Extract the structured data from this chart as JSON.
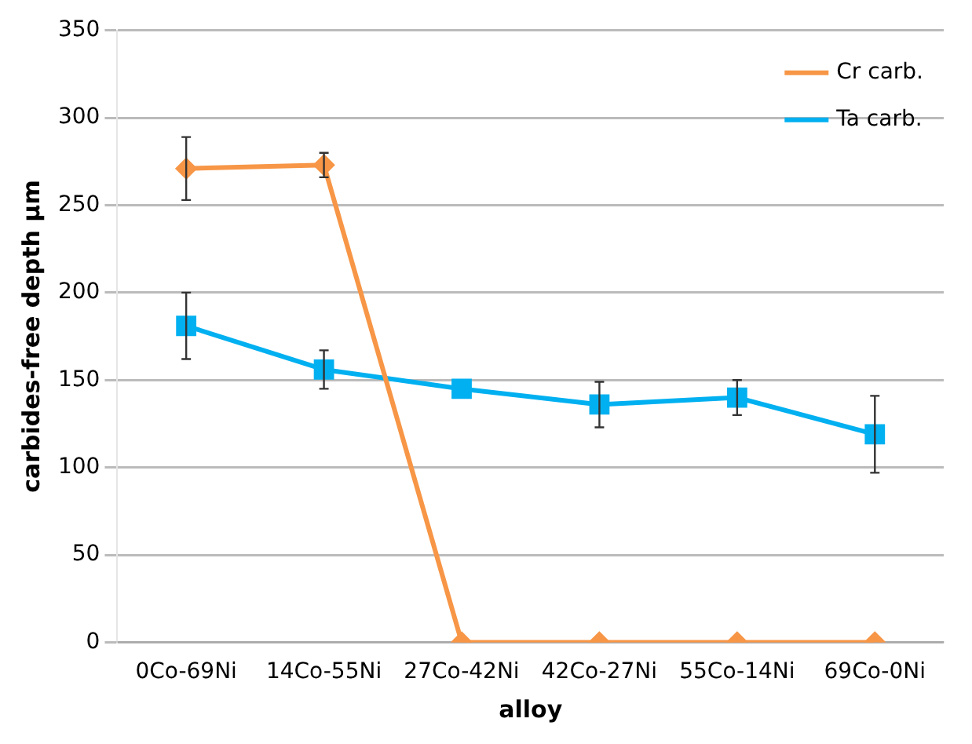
{
  "chart_data": {
    "type": "line",
    "xlabel": "alloy",
    "ylabel": "carbides-free depth µm",
    "categories": [
      "0Co-69Ni",
      "14Co-55Ni",
      "27Co-42Ni",
      "42Co-27Ni",
      "55Co-14Ni",
      "69Co-0Ni"
    ],
    "series": [
      {
        "name": "Cr carb.",
        "color": "#f79646",
        "marker": "diamond",
        "values": [
          271,
          273,
          0,
          0,
          0,
          0
        ],
        "errors": [
          18,
          7,
          null,
          null,
          null,
          null
        ]
      },
      {
        "name": "Ta carb.",
        "color": "#00b0f0",
        "marker": "square",
        "values": [
          181,
          156,
          145,
          136,
          140,
          119
        ],
        "errors": [
          19,
          11,
          null,
          13,
          10,
          22
        ]
      }
    ],
    "ylim": [
      0,
      350
    ],
    "yticks": [
      0,
      50,
      100,
      150,
      200,
      250,
      300,
      350
    ],
    "grid": "y",
    "legend": "top right"
  }
}
